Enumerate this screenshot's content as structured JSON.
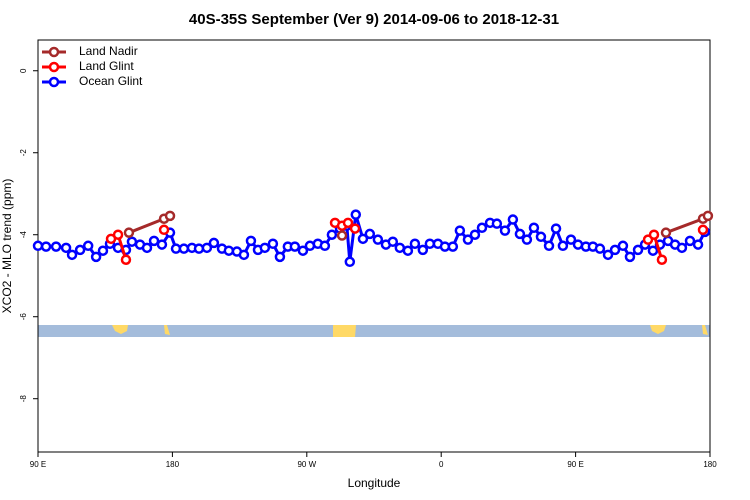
{
  "chart_data": {
    "type": "line",
    "title": "40S-35S September (Ver 9)   2014-09-06 to 2018-12-31",
    "xlabel": "Longitude",
    "ylabel": "XCO2 - MLO trend (ppm)",
    "xlim": [
      90,
      540
    ],
    "xticks": [
      {
        "value": 90,
        "label": "90 E"
      },
      180,
      {
        "value": 270,
        "label": "90 W"
      },
      {
        "value": 360,
        "label": "0"
      },
      {
        "value": 450,
        "label": "90 E"
      },
      {
        "value": 540,
        "label": "180"
      }
    ],
    "ylim": [
      -9.3,
      0.75
    ],
    "yticks": [
      0,
      -2,
      -4,
      -6,
      -8
    ],
    "legend": "top-left",
    "series": [
      {
        "name": "Land Nadir",
        "color": "#a52a2a",
        "x": [
          150.9,
          174.4,
          178.4,
          null,
          293.6,
          null,
          510.5,
          535.3,
          538.6
        ],
        "values": [
          -3.95,
          -3.61,
          -3.54,
          null,
          -4.02,
          null,
          -3.95,
          -3.61,
          -3.54
        ]
      },
      {
        "name": "Land Glint",
        "color": "#ff0000",
        "x": [
          138.9,
          143.6,
          148.9,
          null,
          174.4,
          null,
          288.9,
          293.6,
          297.6,
          302.3,
          null,
          498.5,
          502.5,
          507.8,
          null,
          535.3
        ],
        "values": [
          -4.1,
          -4.0,
          -4.61,
          null,
          -3.88,
          null,
          -3.71,
          -3.78,
          -3.71,
          -3.85,
          null,
          -4.12,
          -4.0,
          -4.61,
          null,
          -3.88
        ]
      },
      {
        "name": "Ocean Glint",
        "color": "#0000ff",
        "x": [
          90,
          95.4,
          102.1,
          108.8,
          112.8,
          118.2,
          123.6,
          128.9,
          133.5,
          138.2,
          143.6,
          148.9,
          152.9,
          158.3,
          163.0,
          167.7,
          173.0,
          178.4,
          182.4,
          187.7,
          193.1,
          197.8,
          203.1,
          207.8,
          213.2,
          217.8,
          223.2,
          227.9,
          232.6,
          237.3,
          241.9,
          247.3,
          252.0,
          257.3,
          262.0,
          267.4,
          272.1,
          277.4,
          282.1,
          286.8,
          292.2,
          296.8,
          298.8,
          302.8,
          307.6,
          312.2,
          317.6,
          323.0,
          327.6,
          332.3,
          337.7,
          342.4,
          347.7,
          352.4,
          357.8,
          362.5,
          367.8,
          372.5,
          377.9,
          382.6,
          387.3,
          392.7,
          397.3,
          402.7,
          408.0,
          412.7,
          417.4,
          422.1,
          426.8,
          432.2,
          436.9,
          441.5,
          446.9,
          451.6,
          456.9,
          461.6,
          466.3,
          471.7,
          476.4,
          481.7,
          486.4,
          491.8,
          496.5,
          501.8,
          506.5,
          511.9,
          516.6,
          521.2,
          526.6,
          532.0,
          536.6
        ],
        "values": [
          -4.27,
          -4.29,
          -4.29,
          -4.32,
          -4.49,
          -4.37,
          -4.27,
          -4.54,
          -4.39,
          -4.22,
          -4.32,
          -4.37,
          -4.17,
          -4.24,
          -4.32,
          -4.15,
          -4.24,
          -3.95,
          -4.34,
          -4.34,
          -4.32,
          -4.34,
          -4.32,
          -4.2,
          -4.34,
          -4.39,
          -4.41,
          -4.49,
          -4.15,
          -4.37,
          -4.32,
          -4.22,
          -4.54,
          -4.29,
          -4.29,
          -4.39,
          -4.27,
          -4.22,
          -4.27,
          -4.0,
          -3.85,
          -3.78,
          -4.66,
          -3.51,
          -4.1,
          -3.98,
          -4.12,
          -4.24,
          -4.17,
          -4.32,
          -4.39,
          -4.22,
          -4.37,
          -4.22,
          -4.22,
          -4.29,
          -4.29,
          -3.9,
          -4.12,
          -4.0,
          -3.83,
          -3.71,
          -3.73,
          -3.9,
          -3.63,
          -3.98,
          -4.12,
          -3.83,
          -4.05,
          -4.27,
          -3.85,
          -4.27,
          -4.12,
          -4.24,
          -4.29,
          -4.29,
          -4.34,
          -4.49,
          -4.37,
          -4.27,
          -4.54,
          -4.37,
          -4.24,
          -4.39,
          -4.24,
          -4.15,
          -4.24,
          -4.32,
          -4.15,
          -4.24,
          -3.93
        ]
      }
    ]
  }
}
